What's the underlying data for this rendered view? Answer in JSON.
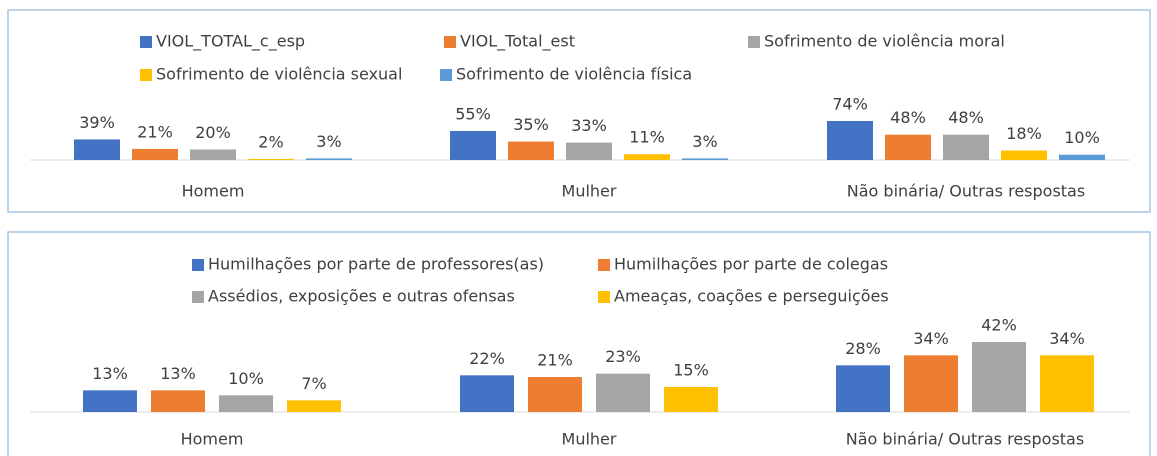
{
  "chart_data": [
    {
      "type": "bar",
      "categories": [
        "Homem",
        "Mulher",
        "Não binária/ Outras respostas"
      ],
      "series": [
        {
          "name": "VIOL_TOTAL_c_esp",
          "color": "#4472c4",
          "values": [
            39,
            55,
            74
          ],
          "value_labels": [
            "39%",
            "55%",
            "74%"
          ]
        },
        {
          "name": "VIOL_Total_est",
          "color": "#ed7d31",
          "values": [
            21,
            35,
            48
          ],
          "value_labels": [
            "21%",
            "35%",
            "48%"
          ]
        },
        {
          "name": "Sofrimento de violência moral",
          "color": "#a5a5a5",
          "values": [
            20,
            33,
            48
          ],
          "value_labels": [
            "20%",
            "33%",
            "48%"
          ]
        },
        {
          "name": "Sofrimento de violência sexual",
          "color": "#ffc000",
          "values": [
            2,
            11,
            18
          ],
          "value_labels": [
            "2%",
            "11%",
            "18%"
          ]
        },
        {
          "name": "Sofrimento de violência física",
          "color": "#5b9bd5",
          "values": [
            3,
            3,
            10
          ],
          "value_labels": [
            "3%",
            "3%",
            "10%"
          ]
        }
      ]
    },
    {
      "type": "bar",
      "categories": [
        "Homem",
        "Mulher",
        "Não binária/ Outras respostas"
      ],
      "series": [
        {
          "name": "Humilhações por parte de professores(as)",
          "color": "#4472c4",
          "values": [
            13,
            22,
            28
          ],
          "value_labels": [
            "13%",
            "22%",
            "28%"
          ]
        },
        {
          "name": "Humilhações por parte de colegas",
          "color": "#ed7d31",
          "values": [
            13,
            21,
            34
          ],
          "value_labels": [
            "13%",
            "21%",
            "34%"
          ]
        },
        {
          "name": "Assédios, exposições e outras ofensas",
          "color": "#a5a5a5",
          "values": [
            10,
            23,
            42
          ],
          "value_labels": [
            "10%",
            "23%",
            "42%"
          ]
        },
        {
          "name": "Ameaças, coações e perseguições",
          "color": "#ffc000",
          "values": [
            7,
            15,
            34
          ],
          "value_labels": [
            "7%",
            "15%",
            "34%"
          ]
        }
      ]
    }
  ]
}
